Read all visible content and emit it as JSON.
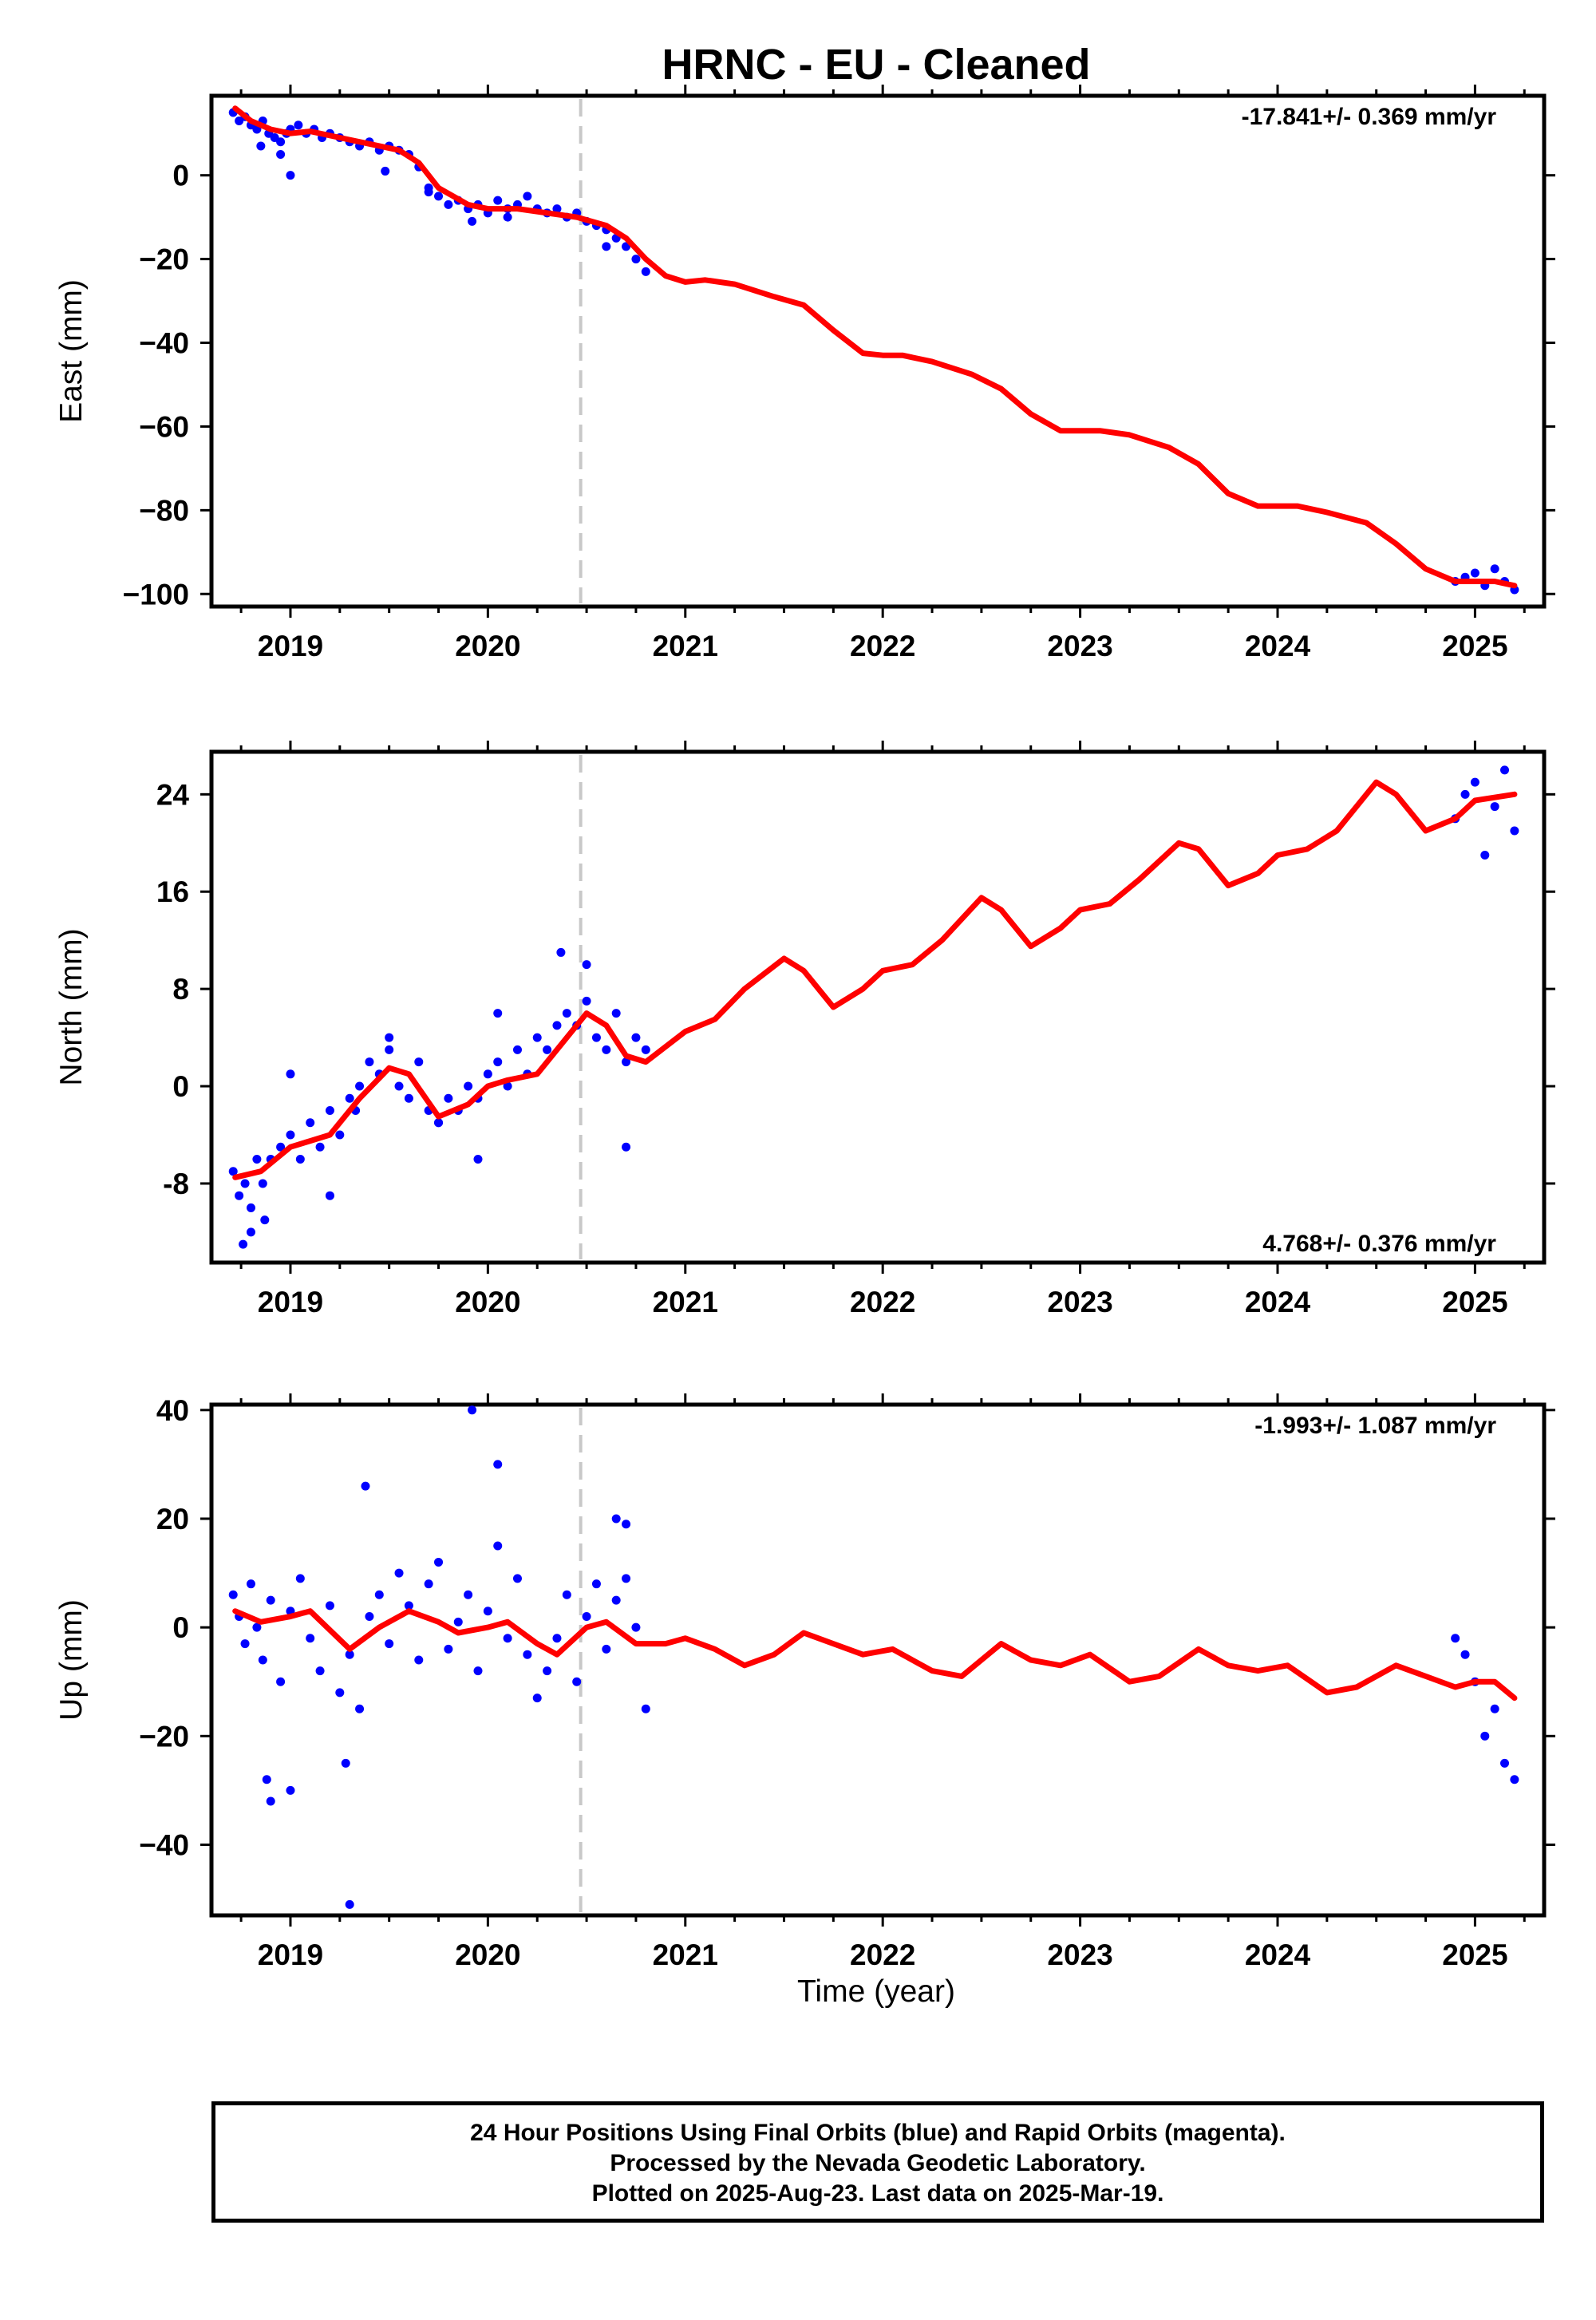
{
  "figure": {
    "title": "HRNC  - EU - Cleaned",
    "xlabel": "Time (year)",
    "footer": [
      "24 Hour Positions Using Final Orbits (blue) and Rapid Orbits (magenta).",
      "Processed by the Nevada Geodetic Laboratory.",
      "Plotted on 2025-Aug-23. Last data on 2025-Mar-19."
    ],
    "colors": {
      "final_orbits": "#0000ff",
      "model": "#ff0000",
      "marker": "#c8c8c8",
      "frame": "#000000"
    }
  },
  "chart_data": [
    {
      "type": "scatter",
      "ylabel": "East (mm)",
      "rate_label": "-17.841+/- 0.369 mm/yr",
      "rate_position": "top-right",
      "xlim": [
        2018.6,
        2025.35
      ],
      "ylim": [
        -103,
        19
      ],
      "xticks": [
        2019,
        2020,
        2021,
        2022,
        2023,
        2024,
        2025
      ],
      "xtick_labels": [
        "2019",
        "2020",
        "2021",
        "2022",
        "2023",
        "2024",
        "2025"
      ],
      "yticks": [
        0,
        -20,
        -40,
        -60,
        -80,
        -100
      ],
      "ytick_labels": [
        "0",
        "−20",
        "−40",
        "−60",
        "−80",
        "−100"
      ],
      "event_line_x": 2020.47,
      "grid": false,
      "series": [
        {
          "kind": "points",
          "x": [
            2018.71,
            2018.74,
            2018.77,
            2018.8,
            2018.83,
            2018.86,
            2018.89,
            2018.92,
            2018.95,
            2018.98,
            2019.0,
            2019.04,
            2019.08,
            2019.12,
            2019.16,
            2019.2,
            2019.25,
            2019.3,
            2019.35,
            2019.4,
            2019.45,
            2019.5,
            2019.55,
            2019.6,
            2019.65,
            2019.7,
            2019.75,
            2019.8,
            2019.85,
            2019.9,
            2019.95,
            2020.0,
            2020.05,
            2020.1,
            2020.15,
            2020.2,
            2020.25,
            2020.3,
            2020.35,
            2020.4,
            2020.45,
            2020.5,
            2020.55,
            2020.6,
            2020.65,
            2020.7,
            2020.75,
            2020.8,
            2018.85,
            2018.95,
            2019.0,
            2019.48,
            2019.7,
            2019.92,
            2020.1,
            2020.6,
            2024.9,
            2024.95,
            2025.0,
            2025.05,
            2025.1,
            2025.15,
            2025.2
          ],
          "y": [
            15,
            13,
            14,
            12,
            11,
            13,
            10,
            9,
            8,
            10,
            11,
            12,
            10,
            11,
            9,
            10,
            9,
            8,
            7,
            8,
            6,
            7,
            6,
            5,
            2,
            -3,
            -5,
            -7,
            -6,
            -8,
            -7,
            -9,
            -6,
            -8,
            -7,
            -5,
            -8,
            -9,
            -8,
            -10,
            -9,
            -11,
            -12,
            -13,
            -15,
            -17,
            -20,
            -23,
            7,
            5,
            0,
            1,
            -4,
            -11,
            -10,
            -17,
            -97,
            -96,
            -95,
            -98,
            -94,
            -97,
            -99
          ]
        },
        {
          "kind": "model",
          "x": [
            2018.72,
            2018.8,
            2018.9,
            2019.0,
            2019.1,
            2019.25,
            2019.4,
            2019.55,
            2019.65,
            2019.75,
            2019.9,
            2020.0,
            2020.15,
            2020.3,
            2020.45,
            2020.6,
            2020.7,
            2020.8,
            2020.9,
            2021.0,
            2021.1,
            2021.25,
            2021.45,
            2021.6,
            2021.75,
            2021.9,
            2022.0,
            2022.1,
            2022.25,
            2022.45,
            2022.6,
            2022.75,
            2022.9,
            2023.0,
            2023.1,
            2023.25,
            2023.45,
            2023.6,
            2023.75,
            2023.9,
            2024.0,
            2024.1,
            2024.25,
            2024.45,
            2024.6,
            2024.75,
            2024.9,
            2025.0,
            2025.1,
            2025.2
          ],
          "y": [
            16,
            13,
            11,
            10,
            10.5,
            9,
            7.5,
            6,
            3,
            -3,
            -7,
            -8,
            -8,
            -9,
            -10,
            -12,
            -15,
            -20,
            -24,
            -25.5,
            -25,
            -26,
            -29,
            -31,
            -37,
            -42.5,
            -43,
            -43,
            -44.5,
            -47.5,
            -51,
            -57,
            -61,
            -61,
            -61,
            -62,
            -65,
            -69,
            -76,
            -79,
            -79,
            -79,
            -80.5,
            -83,
            -88,
            -94,
            -97,
            -97,
            -97,
            -98
          ]
        }
      ]
    },
    {
      "type": "scatter",
      "ylabel": "North (mm)",
      "rate_label": "4.768+/- 0.376 mm/yr",
      "rate_position": "bottom-right",
      "xlim": [
        2018.6,
        2025.35
      ],
      "ylim": [
        -14.5,
        27.5
      ],
      "xticks": [
        2019,
        2020,
        2021,
        2022,
        2023,
        2024,
        2025
      ],
      "xtick_labels": [
        "2019",
        "2020",
        "2021",
        "2022",
        "2023",
        "2024",
        "2025"
      ],
      "yticks": [
        24,
        16,
        8,
        0,
        -8
      ],
      "ytick_labels": [
        "24",
        "16",
        "8",
        "0",
        "-8"
      ],
      "event_line_x": 2020.47,
      "grid": false,
      "series": [
        {
          "kind": "points",
          "x": [
            2018.71,
            2018.74,
            2018.77,
            2018.8,
            2018.83,
            2018.86,
            2018.9,
            2018.95,
            2019.0,
            2019.05,
            2019.1,
            2019.15,
            2019.2,
            2019.25,
            2019.3,
            2019.35,
            2019.4,
            2019.45,
            2019.5,
            2019.55,
            2019.6,
            2019.65,
            2019.7,
            2019.75,
            2019.8,
            2019.85,
            2019.9,
            2019.95,
            2020.0,
            2020.05,
            2020.1,
            2020.15,
            2020.2,
            2020.25,
            2020.3,
            2020.35,
            2020.4,
            2020.45,
            2020.5,
            2020.55,
            2020.6,
            2020.65,
            2020.7,
            2020.75,
            2020.8,
            2018.76,
            2018.8,
            2018.87,
            2019.0,
            2019.2,
            2019.33,
            2019.5,
            2019.75,
            2019.95,
            2020.05,
            2020.37,
            2020.5,
            2020.7,
            2024.9,
            2024.95,
            2025.0,
            2025.05,
            2025.1,
            2025.15,
            2025.2
          ],
          "y": [
            -7,
            -9,
            -8,
            -10,
            -6,
            -8,
            -6,
            -5,
            -4,
            -6,
            -3,
            -5,
            -2,
            -4,
            -1,
            0,
            2,
            1,
            3,
            0,
            -1,
            2,
            -2,
            -3,
            -1,
            -2,
            0,
            -1,
            1,
            2,
            0,
            3,
            1,
            4,
            3,
            5,
            6,
            5,
            7,
            4,
            3,
            6,
            2,
            4,
            3,
            -13,
            -12,
            -11,
            1,
            -9,
            -2,
            4,
            -3,
            -6,
            6,
            11,
            10,
            -5,
            22,
            24,
            25,
            19,
            23,
            26,
            21
          ]
        },
        {
          "kind": "model",
          "x": [
            2018.72,
            2018.85,
            2019.0,
            2019.1,
            2019.2,
            2019.35,
            2019.5,
            2019.6,
            2019.75,
            2019.9,
            2020.0,
            2020.1,
            2020.25,
            2020.4,
            2020.5,
            2020.6,
            2020.7,
            2020.8,
            2021.0,
            2021.15,
            2021.3,
            2021.5,
            2021.6,
            2021.75,
            2021.9,
            2022.0,
            2022.15,
            2022.3,
            2022.5,
            2022.6,
            2022.75,
            2022.9,
            2023.0,
            2023.15,
            2023.3,
            2023.5,
            2023.6,
            2023.75,
            2023.9,
            2024.0,
            2024.15,
            2024.3,
            2024.5,
            2024.6,
            2024.75,
            2024.9,
            2025.0,
            2025.2
          ],
          "y": [
            -7.5,
            -7,
            -5,
            -4.5,
            -4,
            -1,
            1.5,
            1,
            -2.5,
            -1.5,
            0,
            0.5,
            1,
            4,
            6,
            5,
            2.5,
            2,
            4.5,
            5.5,
            8,
            10.5,
            9.5,
            6.5,
            8,
            9.5,
            10,
            12,
            15.5,
            14.5,
            11.5,
            13,
            14.5,
            15,
            17,
            20,
            19.5,
            16.5,
            17.5,
            19,
            19.5,
            21,
            25,
            24,
            21,
            22,
            23.5,
            24
          ]
        }
      ]
    },
    {
      "type": "scatter",
      "ylabel": "Up (mm)",
      "rate_label": "-1.993+/- 1.087 mm/yr",
      "rate_position": "top-right",
      "xlim": [
        2018.6,
        2025.35
      ],
      "ylim": [
        -53,
        41
      ],
      "xticks": [
        2019,
        2020,
        2021,
        2022,
        2023,
        2024,
        2025
      ],
      "xtick_labels": [
        "2019",
        "2020",
        "2021",
        "2022",
        "2023",
        "2024",
        "2025"
      ],
      "yticks": [
        40,
        20,
        0,
        -20,
        -40
      ],
      "ytick_labels": [
        "40",
        "20",
        "0",
        "−20",
        "−40"
      ],
      "event_line_x": 2020.47,
      "grid": false,
      "series": [
        {
          "kind": "points",
          "x": [
            2018.71,
            2018.74,
            2018.77,
            2018.8,
            2018.83,
            2018.86,
            2018.9,
            2018.95,
            2019.0,
            2019.05,
            2019.1,
            2019.15,
            2019.2,
            2019.25,
            2019.3,
            2019.35,
            2019.4,
            2019.45,
            2019.5,
            2019.55,
            2019.6,
            2019.65,
            2019.7,
            2019.75,
            2019.8,
            2019.85,
            2019.9,
            2019.95,
            2020.0,
            2020.05,
            2020.1,
            2020.15,
            2020.2,
            2020.25,
            2020.3,
            2020.35,
            2020.4,
            2020.45,
            2020.5,
            2020.55,
            2020.6,
            2020.65,
            2020.7,
            2020.75,
            2020.8,
            2018.88,
            2018.9,
            2019.0,
            2019.28,
            2019.3,
            2019.38,
            2019.92,
            2020.05,
            2020.65,
            2020.7,
            2024.9,
            2024.95,
            2025.0,
            2025.05,
            2025.1,
            2025.15,
            2025.2
          ],
          "y": [
            6,
            2,
            -3,
            8,
            0,
            -6,
            5,
            -10,
            3,
            9,
            -2,
            -8,
            4,
            -12,
            -5,
            -15,
            2,
            6,
            -3,
            10,
            4,
            -6,
            8,
            12,
            -4,
            1,
            6,
            -8,
            3,
            15,
            -2,
            9,
            -5,
            -13,
            -8,
            -2,
            6,
            -10,
            2,
            8,
            -4,
            5,
            9,
            0,
            -15,
            -28,
            -32,
            -30,
            -25,
            -51,
            26,
            40,
            30,
            20,
            19,
            -2,
            -5,
            -10,
            -20,
            -15,
            -25,
            -28
          ]
        },
        {
          "kind": "model",
          "x": [
            2018.72,
            2018.85,
            2019.0,
            2019.1,
            2019.3,
            2019.45,
            2019.6,
            2019.75,
            2019.85,
            2020.0,
            2020.1,
            2020.25,
            2020.35,
            2020.5,
            2020.6,
            2020.75,
            2020.9,
            2021.0,
            2021.15,
            2021.3,
            2021.45,
            2021.6,
            2021.75,
            2021.9,
            2022.05,
            2022.25,
            2022.4,
            2022.6,
            2022.75,
            2022.9,
            2023.05,
            2023.25,
            2023.4,
            2023.6,
            2023.75,
            2023.9,
            2024.05,
            2024.25,
            2024.4,
            2024.6,
            2024.75,
            2024.9,
            2025.0,
            2025.1,
            2025.2
          ],
          "y": [
            3,
            1,
            2,
            3,
            -4,
            0,
            3,
            1,
            -1,
            0,
            1,
            -3,
            -5,
            0,
            1,
            -3,
            -3,
            -2,
            -4,
            -7,
            -5,
            -1,
            -3,
            -5,
            -4,
            -8,
            -9,
            -3,
            -6,
            -7,
            -5,
            -10,
            -9,
            -4,
            -7,
            -8,
            -7,
            -12,
            -11,
            -7,
            -9,
            -11,
            -10,
            -10,
            -13
          ]
        }
      ]
    }
  ]
}
